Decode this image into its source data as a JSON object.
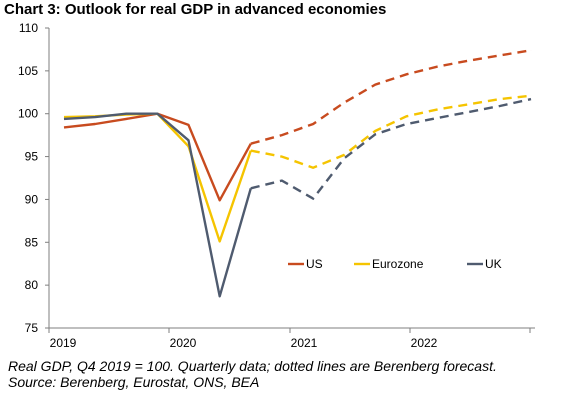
{
  "title": "Chart 3: Outlook for real GDP in advanced economies",
  "footer": {
    "note": "Real GDP, Q4 2019 = 100. Quarterly data; dotted lines are Berenberg forecast.",
    "source": "Source: Berenberg, Eurostat, ONS, BEA"
  },
  "chart_data": {
    "type": "line",
    "title": "Chart 3: Outlook for real GDP in advanced economies",
    "xlabel": "",
    "ylabel": "",
    "ylim": [
      75,
      110
    ],
    "yticks": [
      75,
      80,
      85,
      90,
      95,
      100,
      105,
      110
    ],
    "x": [
      "2019 Q1",
      "2019 Q2",
      "2019 Q3",
      "2019 Q4",
      "2020 Q1",
      "2020 Q2",
      "2020 Q3",
      "2020 Q4",
      "2021 Q1",
      "2021 Q2",
      "2021 Q3",
      "2021 Q4",
      "2022 Q1",
      "2022 Q2",
      "2022 Q3",
      "2022 Q4"
    ],
    "xtick_labels": [
      "2019",
      "2020",
      "2021",
      "2022"
    ],
    "forecast_from": "2020 Q3",
    "grid": false,
    "legend_position": "bottom-right",
    "series": [
      {
        "name": "US",
        "color": "#c84b1f",
        "values": [
          98.4,
          98.8,
          99.4,
          100.0,
          98.7,
          89.9,
          96.5,
          97.5,
          98.8,
          101.3,
          103.4,
          104.6,
          105.5,
          106.2,
          106.8,
          107.4
        ]
      },
      {
        "name": "Eurozone",
        "color": "#f5c400",
        "values": [
          99.6,
          99.7,
          99.9,
          100.0,
          96.2,
          85.1,
          95.7,
          95.0,
          93.7,
          95.2,
          98.0,
          99.7,
          100.5,
          101.1,
          101.7,
          102.1
        ]
      },
      {
        "name": "UK",
        "color": "#4f5b6f",
        "values": [
          99.4,
          99.6,
          100.0,
          100.0,
          96.9,
          78.7,
          91.3,
          92.2,
          90.1,
          94.8,
          97.6,
          98.8,
          99.5,
          100.2,
          100.9,
          101.7
        ]
      }
    ]
  }
}
